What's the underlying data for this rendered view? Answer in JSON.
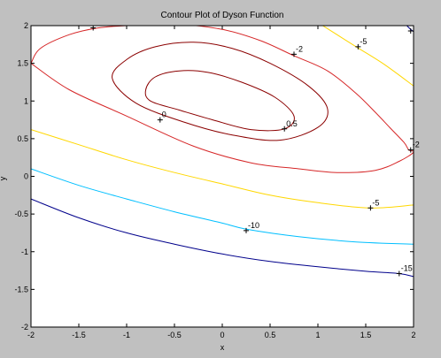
{
  "chart_data": {
    "type": "contour",
    "title": "Contour Plot of Dyson Function",
    "xlabel": "x",
    "ylabel": "y",
    "xlim": [
      -2,
      2
    ],
    "ylim": [
      -2,
      2
    ],
    "xticks": [
      -2,
      -1.5,
      -1,
      -0.5,
      0,
      0.5,
      1,
      1.5,
      2
    ],
    "yticks": [
      -2,
      -1.5,
      -1,
      -0.5,
      0,
      0.5,
      1,
      1.5,
      2
    ],
    "xtick_labels": [
      "-2",
      "-1.5",
      "-1",
      "-0.5",
      "0",
      "0.5",
      "1",
      "1.5",
      "2"
    ],
    "ytick_labels": [
      "-2",
      "-1.5",
      "-1",
      "-0.5",
      "0",
      "0.5",
      "1",
      "1.5",
      "2"
    ],
    "grid": false,
    "background": "#ffffff",
    "figure_background": "#c0c0c0",
    "contours": [
      {
        "level": 0.5,
        "color": "#8b0000",
        "closed": true,
        "points": [
          [
            -0.8,
            1.15
          ],
          [
            -0.7,
            1.32
          ],
          [
            -0.45,
            1.4
          ],
          [
            -0.15,
            1.38
          ],
          [
            0.2,
            1.25
          ],
          [
            0.55,
            1.05
          ],
          [
            0.75,
            0.8
          ],
          [
            0.65,
            0.63
          ],
          [
            0.3,
            0.62
          ],
          [
            -0.1,
            0.75
          ],
          [
            -0.45,
            0.88
          ],
          [
            -0.75,
            1.0
          ]
        ]
      },
      {
        "level": 0,
        "color": "#8b0000",
        "closed": true,
        "points": [
          [
            -1.15,
            1.3
          ],
          [
            -1.0,
            1.55
          ],
          [
            -0.7,
            1.72
          ],
          [
            -0.3,
            1.78
          ],
          [
            0.1,
            1.7
          ],
          [
            0.5,
            1.5
          ],
          [
            0.9,
            1.2
          ],
          [
            1.1,
            0.9
          ],
          [
            1.0,
            0.65
          ],
          [
            0.6,
            0.48
          ],
          [
            0.1,
            0.55
          ],
          [
            -0.4,
            0.72
          ],
          [
            -0.9,
            0.97
          ]
        ]
      },
      {
        "level": -2,
        "color": "#d62728",
        "closed": false,
        "points": [
          [
            -2.0,
            1.5
          ],
          [
            -1.9,
            1.7
          ],
          [
            -1.6,
            1.88
          ],
          [
            -1.3,
            1.97
          ],
          [
            -1.0,
            2.0
          ],
          [
            -0.5,
            2.02
          ],
          [
            0.0,
            1.95
          ],
          [
            0.4,
            1.8
          ],
          [
            0.75,
            1.6
          ],
          [
            1.1,
            1.4
          ],
          [
            1.4,
            1.1
          ],
          [
            1.6,
            0.85
          ],
          [
            1.75,
            0.65
          ],
          [
            1.9,
            0.45
          ],
          [
            1.95,
            0.35
          ],
          [
            2.0,
            0.32
          ],
          [
            1.85,
            0.2
          ],
          [
            1.6,
            0.08
          ],
          [
            1.2,
            0.05
          ],
          [
            0.8,
            0.1
          ],
          [
            0.3,
            0.18
          ],
          [
            -0.3,
            0.4
          ],
          [
            -1.0,
            0.8
          ],
          [
            -1.6,
            1.15
          ],
          [
            -2.0,
            1.5
          ]
        ]
      },
      {
        "level": -5,
        "color": "#ffd700",
        "closed": false,
        "points": [
          [
            -2.0,
            0.62
          ],
          [
            -1.5,
            0.42
          ],
          [
            -1.0,
            0.22
          ],
          [
            -0.5,
            0.05
          ],
          [
            0.0,
            -0.1
          ],
          [
            0.5,
            -0.25
          ],
          [
            1.0,
            -0.35
          ],
          [
            1.55,
            -0.42
          ],
          [
            2.0,
            -0.38
          ]
        ]
      },
      {
        "level": -5,
        "color": "#ffd700",
        "closed": false,
        "points": [
          [
            1.05,
            2.0
          ],
          [
            1.4,
            1.72
          ],
          [
            1.7,
            1.48
          ],
          [
            2.0,
            1.2
          ]
        ]
      },
      {
        "level": -10,
        "color": "#00bfff",
        "closed": false,
        "points": [
          [
            -2.0,
            0.1
          ],
          [
            -1.5,
            -0.12
          ],
          [
            -1.0,
            -0.3
          ],
          [
            -0.5,
            -0.47
          ],
          [
            0.0,
            -0.62
          ],
          [
            0.25,
            -0.7
          ],
          [
            0.8,
            -0.8
          ],
          [
            1.4,
            -0.87
          ],
          [
            2.0,
            -0.9
          ]
        ]
      },
      {
        "level": -15,
        "color": "#00008b",
        "closed": false,
        "points": [
          [
            -2.0,
            -0.3
          ],
          [
            -1.5,
            -0.55
          ],
          [
            -1.0,
            -0.75
          ],
          [
            -0.5,
            -0.9
          ],
          [
            0.0,
            -1.03
          ],
          [
            0.5,
            -1.13
          ],
          [
            1.0,
            -1.2
          ],
          [
            1.5,
            -1.26
          ],
          [
            1.85,
            -1.29
          ],
          [
            2.0,
            -1.33
          ]
        ]
      },
      {
        "level": -15,
        "color": "#00008b",
        "closed": false,
        "points": [
          [
            1.93,
            2.0
          ],
          [
            1.97,
            1.95
          ],
          [
            2.0,
            1.92
          ]
        ]
      }
    ],
    "labels": [
      {
        "text": "0.5",
        "x": 0.65,
        "y": 0.63
      },
      {
        "text": "0",
        "x": -0.65,
        "y": 0.75
      },
      {
        "text": "-2",
        "x": 0.75,
        "y": 1.62
      },
      {
        "text": "-5",
        "x": 1.42,
        "y": 1.72
      },
      {
        "text": "-2",
        "x": 1.97,
        "y": 0.35
      },
      {
        "text": "-5",
        "x": 1.55,
        "y": -0.42
      },
      {
        "text": "-10",
        "x": 0.25,
        "y": -0.72
      },
      {
        "text": "-15",
        "x": 1.85,
        "y": -1.29
      }
    ],
    "plus_marks": [
      {
        "x": -1.35,
        "y": 1.97
      },
      {
        "x": 1.97,
        "y": 1.93
      }
    ]
  }
}
